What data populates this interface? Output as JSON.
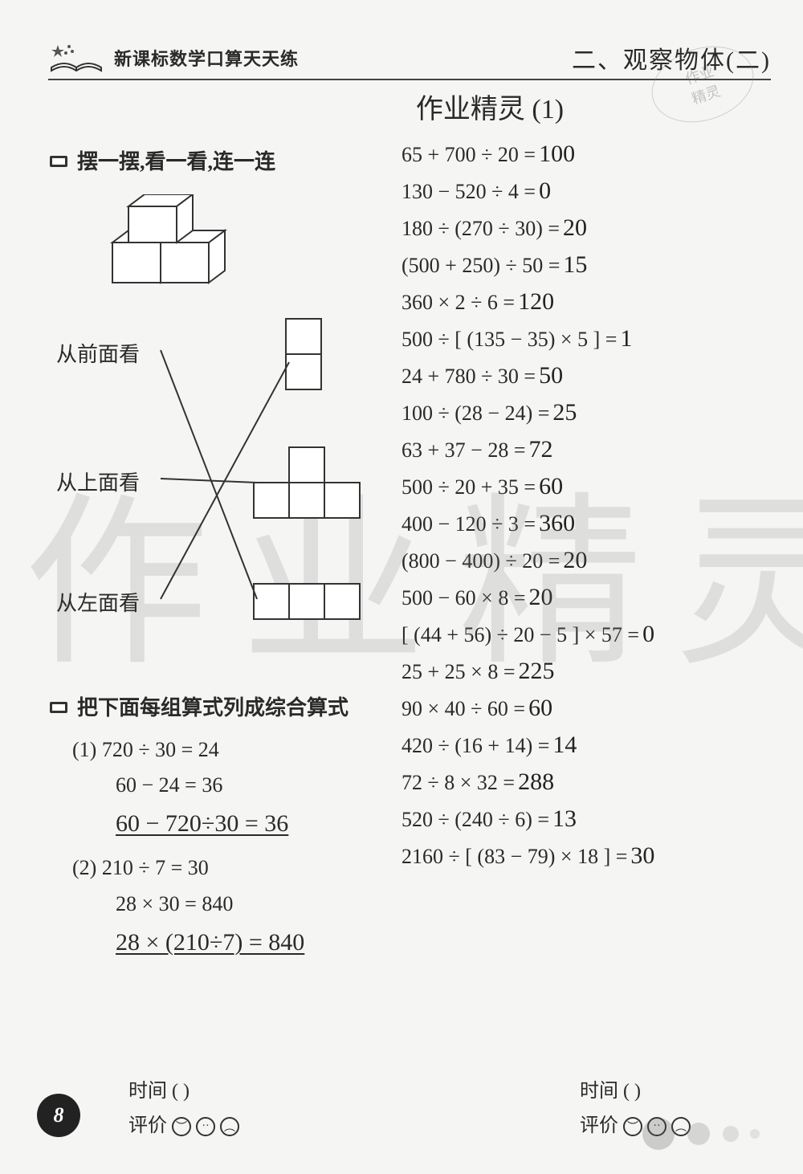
{
  "header": {
    "series_title": "新课标数学口算天天练",
    "chapter": "二、观察物体(二)"
  },
  "stamp": {
    "line1": "作业",
    "line2": "精灵"
  },
  "subheading": "作业精灵 (1)",
  "section1_title": "摆一摆,看一看,连一连",
  "cubes_figure": {
    "type": "isometric-cubes",
    "arrangement": "two cubes on bottom row, one cube stacked on top-left",
    "stroke": "#333333",
    "fill": "#ffffff"
  },
  "match": {
    "labels": [
      "从前面看",
      "从上面看",
      "从左面看"
    ],
    "shapes": [
      {
        "id": "shape-a",
        "desc": "1x2 vertical",
        "grid": [
          [
            1
          ],
          [
            1
          ]
        ]
      },
      {
        "id": "shape-b",
        "desc": "plus/T cross 3 wide with top center",
        "grid": [
          [
            0,
            1,
            0
          ],
          [
            1,
            1,
            1
          ]
        ]
      },
      {
        "id": "shape-c",
        "desc": "1x3 horizontal",
        "grid": [
          [
            1,
            1,
            1
          ]
        ]
      }
    ],
    "connections": [
      {
        "from_label_index": 0,
        "to_shape_index": 2
      },
      {
        "from_label_index": 1,
        "to_shape_index": 1
      },
      {
        "from_label_index": 2,
        "to_shape_index": 0
      }
    ],
    "cell_size": 44,
    "stroke": "#333333"
  },
  "section2_title": "把下面每组算式列成综合算式",
  "combine": [
    {
      "num": "(1)",
      "lines": [
        "720 ÷ 30 = 24",
        "60 − 24 = 36"
      ],
      "handwritten": "60 − 720÷30 = 36"
    },
    {
      "num": "(2)",
      "lines": [
        "210 ÷ 7 = 30",
        "28 × 30 = 840"
      ],
      "handwritten": "28 × (210÷7) = 840"
    }
  ],
  "problems": [
    {
      "expr": "65 + 700 ÷ 20 =",
      "ans": "100"
    },
    {
      "expr": "130 − 520 ÷ 4 =",
      "ans": "0"
    },
    {
      "expr": "180 ÷ (270 ÷ 30) =",
      "ans": "20"
    },
    {
      "expr": "(500 + 250) ÷ 50 =",
      "ans": "15"
    },
    {
      "expr": "360 × 2 ÷ 6 =",
      "ans": "120"
    },
    {
      "expr": "500 ÷ [ (135 − 35) × 5 ] =",
      "ans": "1"
    },
    {
      "expr": "24 + 780 ÷ 30 =",
      "ans": "50"
    },
    {
      "expr": "100 ÷ (28 − 24) =",
      "ans": "25"
    },
    {
      "expr": "63 + 37 − 28 =",
      "ans": "72"
    },
    {
      "expr": "500 ÷ 20 + 35 =",
      "ans": "60"
    },
    {
      "expr": "400 − 120 ÷ 3 =",
      "ans": "360"
    },
    {
      "expr": "(800 − 400) ÷ 20 =",
      "ans": "20"
    },
    {
      "expr": "500 − 60 × 8 =",
      "ans": "20"
    },
    {
      "expr": "[ (44 + 56) ÷ 20 − 5 ] × 57 =",
      "ans": "0"
    },
    {
      "expr": "25 + 25 × 8 =",
      "ans": "225"
    },
    {
      "expr": "90 × 40 ÷ 60 =",
      "ans": "60"
    },
    {
      "expr": "420 ÷ (16 + 14) =",
      "ans": "14"
    },
    {
      "expr": "72 ÷ 8 × 32 =",
      "ans": "288"
    },
    {
      "expr": "520 ÷ (240 ÷ 6) =",
      "ans": "13"
    },
    {
      "expr": "2160 ÷ [ (83 − 79) × 18 ] =",
      "ans": "30"
    }
  ],
  "footer": {
    "time_label": "时间 (     )",
    "rating_label": "评价"
  },
  "page_number": "8",
  "colors": {
    "text": "#2a2a2a",
    "background": "#f5f5f3",
    "watermark": "rgba(120,120,120,0.18)",
    "stroke": "#333333"
  },
  "watermark_text": "作业精灵"
}
